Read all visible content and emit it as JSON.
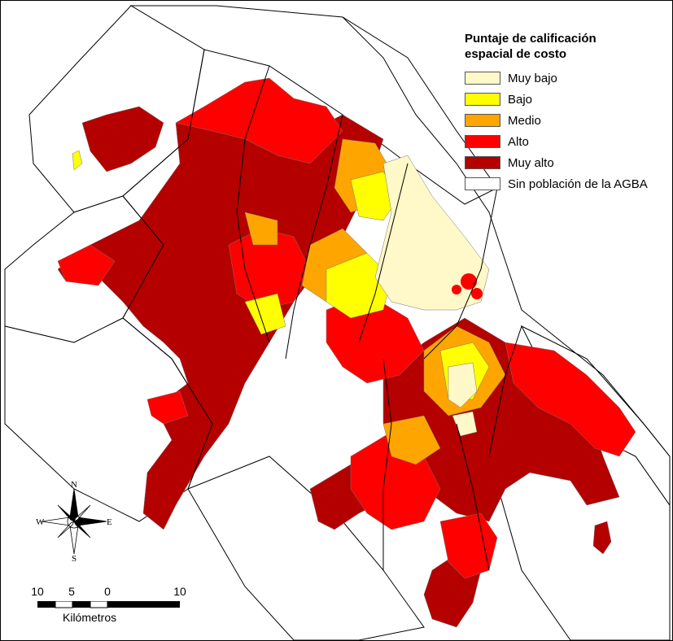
{
  "legend": {
    "title_line1": "Puntaje de calificación",
    "title_line2": "espacial de costo",
    "items": [
      {
        "label": "Muy bajo",
        "color": "#fff8c8"
      },
      {
        "label": "Bajo",
        "color": "#ffff00"
      },
      {
        "label": "Medio",
        "color": "#ffa500"
      },
      {
        "label": "Alto",
        "color": "#ff0000"
      },
      {
        "label": "Muy alto",
        "color": "#b50000"
      },
      {
        "label": "Sin población de la AGBA",
        "color": "#ffffff"
      }
    ]
  },
  "scale": {
    "tick_labels": [
      "10",
      "5",
      "0",
      "10"
    ],
    "unit": "Kilómetros"
  },
  "compass": {
    "n": "N",
    "s": "S",
    "e": "E",
    "w": "W"
  },
  "colors": {
    "boundary": "#000000",
    "tract_line": "#666666"
  }
}
